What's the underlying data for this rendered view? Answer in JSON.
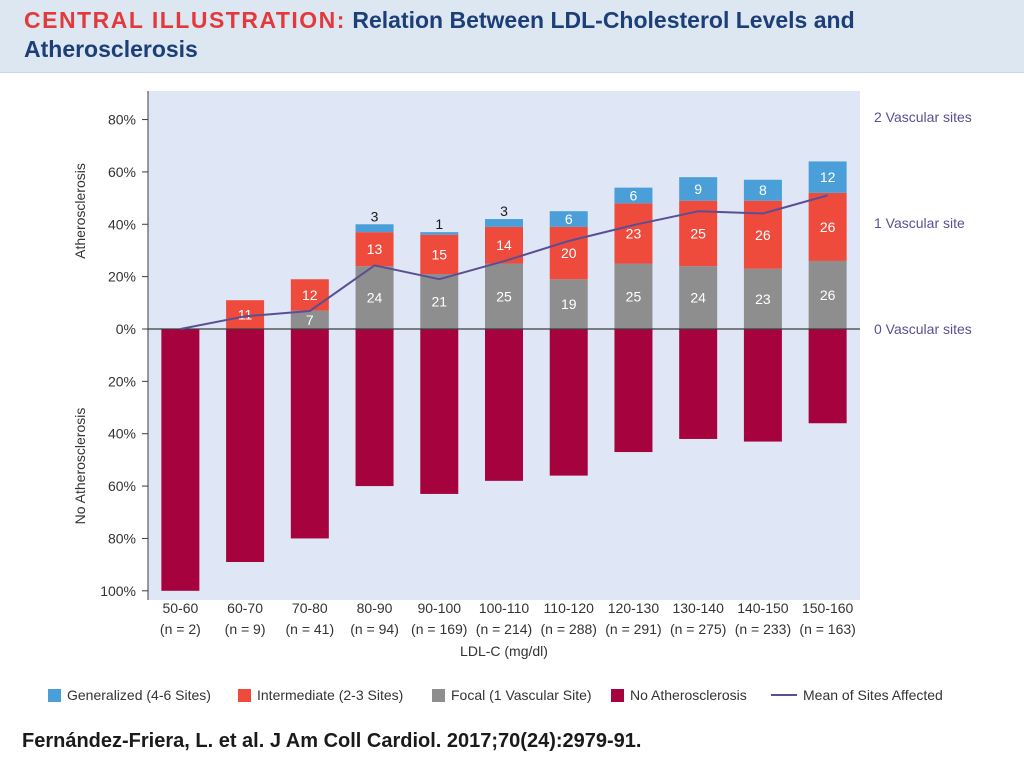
{
  "header": {
    "label": "CENTRAL ILLUSTRATION:",
    "title": "Relation Between LDL-Cholesterol Levels and Atherosclerosis"
  },
  "colors": {
    "generalized": "#4a9fd8",
    "intermediate": "#ef4b3c",
    "focal": "#8e8e8e",
    "none": "#a6023d",
    "mean_line": "#5a4f94",
    "plot_bg": "#dfe6f5"
  },
  "legend": {
    "generalized": "Generalized (4-6 Sites)",
    "intermediate": "Intermediate (2-3 Sites)",
    "focal": "Focal (1 Vascular Site)",
    "none": "No Atherosclerosis",
    "mean": "Mean of Sites Affected"
  },
  "citation": "Fernández-Friera, L. et al. J Am Coll Cardiol. 2017;70(24):2979-91.",
  "chart_data": {
    "type": "bar",
    "xlabel": "LDL-C (mg/dl)",
    "ylabel_top": "Atherosclerosis",
    "ylabel_bottom": "No Atherosclerosis",
    "y_ticks_top": [
      "80%",
      "60%",
      "40%",
      "20%",
      "0%"
    ],
    "y_ticks_bottom": [
      "20%",
      "40%",
      "60%",
      "80%",
      "100%"
    ],
    "right_axis_ticks": [
      "2 Vascular sites",
      "1 Vascular site",
      "0 Vascular sites"
    ],
    "ylim": [
      -100,
      90
    ],
    "right_ylim": [
      0,
      2
    ],
    "categories": [
      "50-60",
      "60-70",
      "70-80",
      "80-90",
      "90-100",
      "100-110",
      "110-120",
      "120-130",
      "130-140",
      "140-150",
      "150-160"
    ],
    "n_labels": [
      "(n = 2)",
      "(n = 9)",
      "(n = 41)",
      "(n = 94)",
      "(n = 169)",
      "(n = 214)",
      "(n = 288)",
      "(n = 291)",
      "(n = 275)",
      "(n = 233)",
      "(n = 163)"
    ],
    "series": [
      {
        "name": "Focal (1 Vascular Site)",
        "key": "focal",
        "values": [
          0,
          0,
          7,
          24,
          21,
          25,
          19,
          25,
          24,
          23,
          26
        ],
        "labels": [
          "",
          "",
          "7",
          "24",
          "21",
          "25",
          "19",
          "25",
          "24",
          "23",
          "26"
        ]
      },
      {
        "name": "Intermediate (2-3 Sites)",
        "key": "intermediate",
        "values": [
          0,
          11,
          12,
          13,
          15,
          14,
          20,
          23,
          25,
          26,
          26
        ],
        "labels": [
          "",
          "11",
          "12",
          "13",
          "15",
          "14",
          "20",
          "23",
          "25",
          "26",
          "26"
        ]
      },
      {
        "name": "Generalized (4-6 Sites)",
        "key": "generalized",
        "values": [
          0,
          0,
          0,
          3,
          1,
          3,
          6,
          6,
          9,
          8,
          12
        ],
        "labels": [
          "",
          "",
          "",
          "3",
          "1",
          "3",
          "6",
          "6",
          "9",
          "8",
          "12"
        ]
      },
      {
        "name": "No Atherosclerosis",
        "key": "none",
        "values": [
          100,
          89,
          80,
          60,
          63,
          58,
          56,
          47,
          42,
          43,
          36
        ]
      }
    ],
    "mean_sites": [
      0,
      0.12,
      0.17,
      0.6,
      0.47,
      0.64,
      0.83,
      0.98,
      1.11,
      1.09,
      1.26
    ],
    "grid": false,
    "legend_position": "bottom"
  }
}
